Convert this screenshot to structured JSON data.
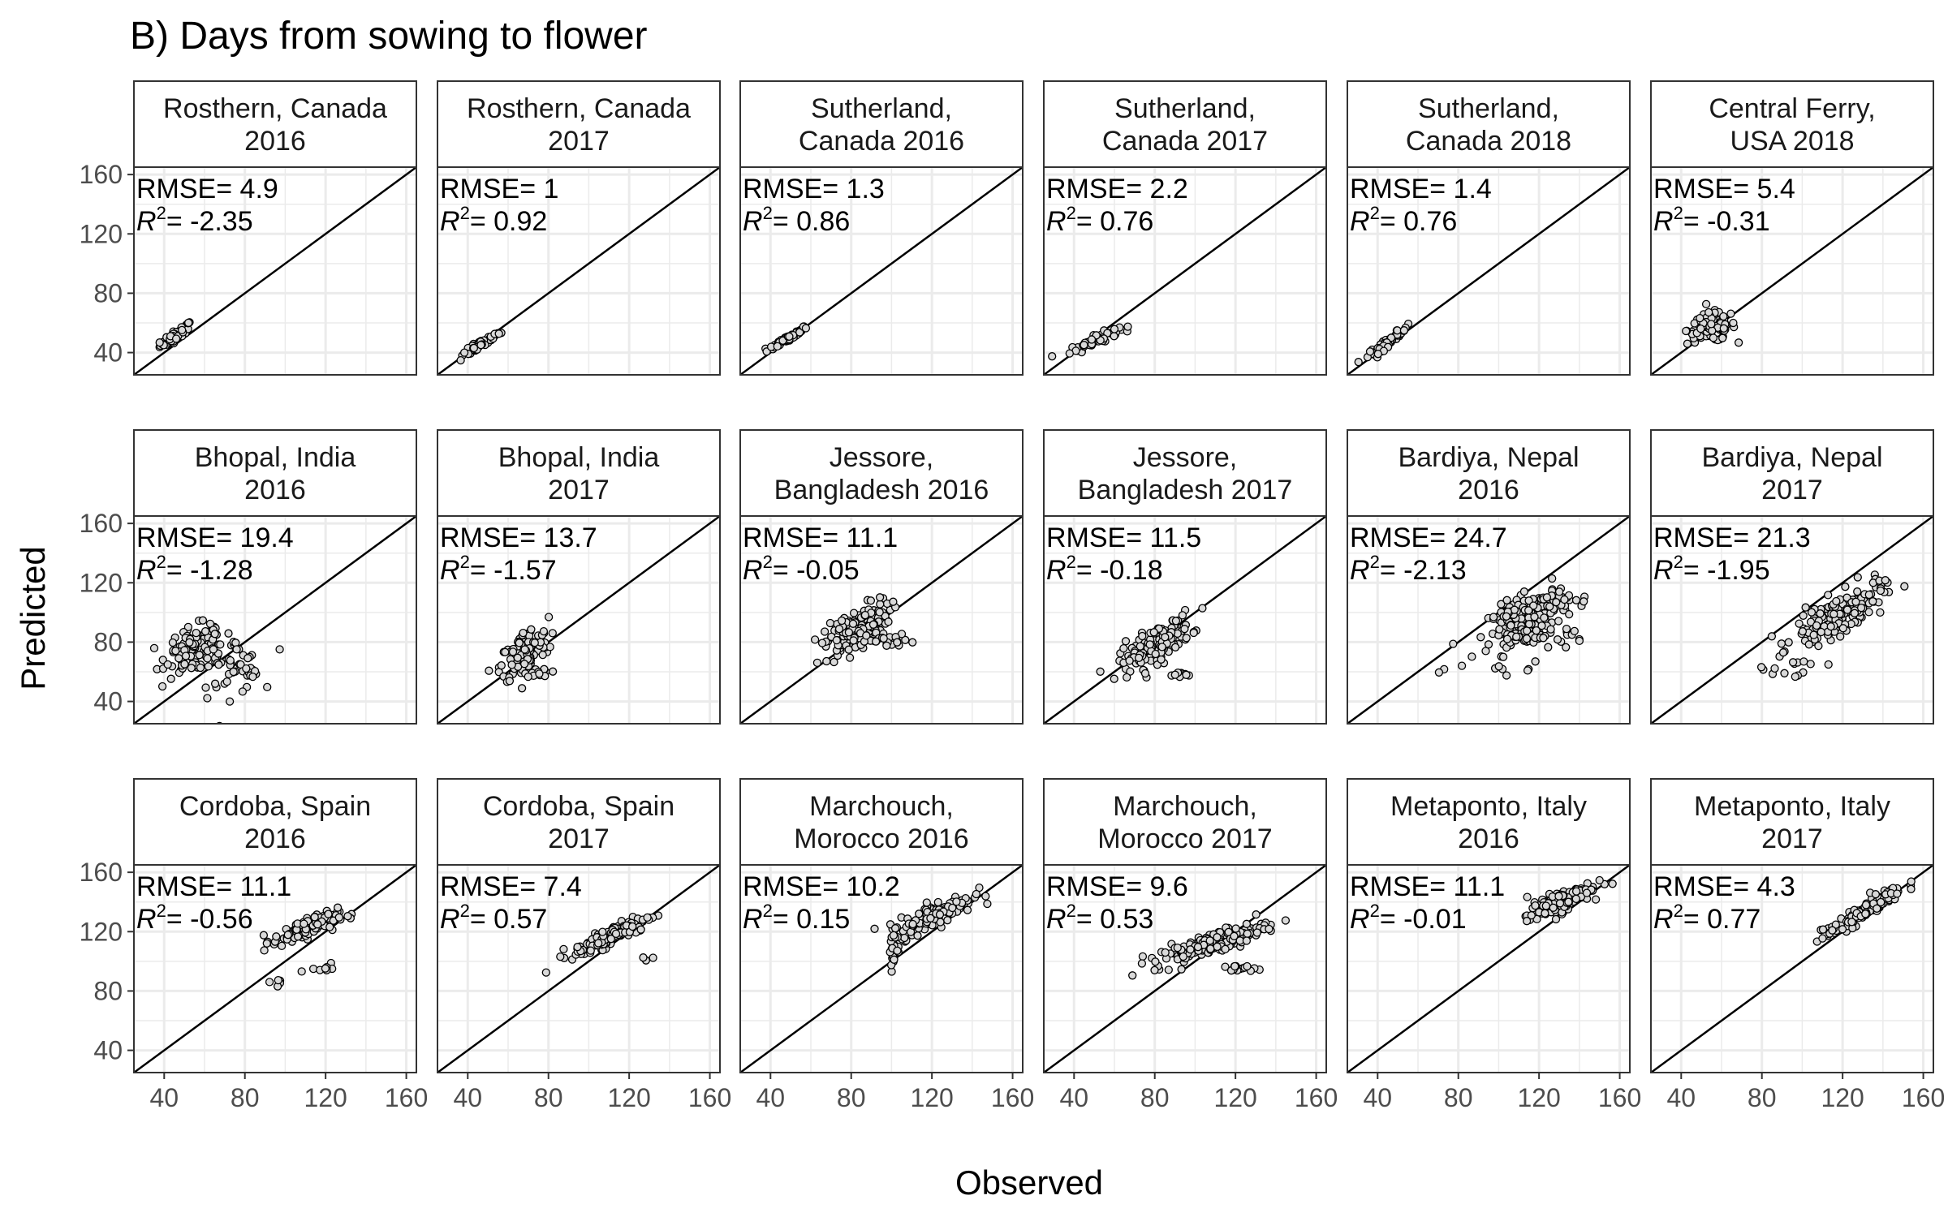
{
  "figure": {
    "title": "B) Days from sowing to flower",
    "xlabel": "Observed",
    "ylabel": "Predicted",
    "rmse_prefix": "RMSE= ",
    "r2_prefix": "R",
    "r2_sup": "2",
    "r2_suffix": "= ",
    "colors": {
      "point_fill": "#d9d9d9",
      "point_stroke": "#000000",
      "grid": "#ebebeb",
      "strip": "#ffffff",
      "line": "#000000"
    }
  },
  "chart_data": {
    "type": "scatter",
    "facet_layout": {
      "rows": 3,
      "cols": 6
    },
    "xlim": [
      25,
      165
    ],
    "ylim": [
      25,
      165
    ],
    "x_ticks": [
      40,
      80,
      120,
      160
    ],
    "y_ticks": [
      40,
      80,
      120,
      160
    ],
    "reference_line": "y = x",
    "grid": true,
    "panels": [
      {
        "strip": [
          "Rosthern, Canada",
          "2016"
        ],
        "rmse": "4.9",
        "r2": "-2.35",
        "clusters": [
          {
            "cx": 46,
            "cy": 52,
            "sx": 4,
            "sy": 4,
            "n": 60,
            "r": 0.9
          }
        ]
      },
      {
        "strip": [
          "Rosthern, Canada",
          "2017"
        ],
        "rmse": "1",
        "r2": "0.92",
        "clusters": [
          {
            "cx": 46,
            "cy": 45,
            "sx": 5,
            "sy": 4.5,
            "n": 55,
            "r": 0.95
          }
        ]
      },
      {
        "strip": [
          "Sutherland,",
          "Canada 2016"
        ],
        "rmse": "1.3",
        "r2": "0.86",
        "clusters": [
          {
            "cx": 49,
            "cy": 50,
            "sx": 5,
            "sy": 4,
            "n": 60,
            "r": 0.95
          }
        ]
      },
      {
        "strip": [
          "Sutherland,",
          "Canada 2017"
        ],
        "rmse": "2.2",
        "r2": "0.76",
        "clusters": [
          {
            "cx": 50,
            "cy": 48,
            "sx": 6,
            "sy": 4,
            "n": 60,
            "r": 0.9
          }
        ]
      },
      {
        "strip": [
          "Sutherland,",
          "Canada 2018"
        ],
        "rmse": "1.4",
        "r2": "0.76",
        "clusters": [
          {
            "cx": 45,
            "cy": 47,
            "sx": 5,
            "sy": 5,
            "n": 55,
            "r": 0.95
          }
        ]
      },
      {
        "strip": [
          "Central Ferry,",
          "USA 2018"
        ],
        "rmse": "5.4",
        "r2": "-0.31",
        "clusters": [
          {
            "cx": 55,
            "cy": 57,
            "sx": 6,
            "sy": 5,
            "n": 100,
            "r": 0.2
          }
        ]
      },
      {
        "strip": [
          "Bhopal, India",
          "2016"
        ],
        "rmse": "19.4",
        "r2": "-1.28",
        "clusters": [
          {
            "cx": 55,
            "cy": 75,
            "sx": 7,
            "sy": 8,
            "n": 110,
            "r": 0.3
          },
          {
            "cx": 72,
            "cy": 64,
            "sx": 8,
            "sy": 10,
            "n": 50,
            "r": 0.1
          },
          {
            "cx": 83,
            "cy": 60,
            "sx": 1.5,
            "sy": 1.5,
            "n": 12,
            "r": 0
          }
        ]
      },
      {
        "strip": [
          "Bhopal, India",
          "2017"
        ],
        "rmse": "13.7",
        "r2": "-1.57",
        "clusters": [
          {
            "cx": 68,
            "cy": 72,
            "sx": 6,
            "sy": 9,
            "n": 130,
            "r": 0.5
          },
          {
            "cx": 75,
            "cy": 60,
            "sx": 3,
            "sy": 2,
            "n": 15,
            "r": 0
          }
        ]
      },
      {
        "strip": [
          "Jessore,",
          "Bangladesh 2016"
        ],
        "rmse": "11.1",
        "r2": "-0.05",
        "clusters": [
          {
            "cx": 83,
            "cy": 88,
            "sx": 8,
            "sy": 9,
            "n": 160,
            "r": 0.6
          },
          {
            "cx": 100,
            "cy": 80,
            "sx": 6,
            "sy": 3,
            "n": 20,
            "r": 0
          }
        ]
      },
      {
        "strip": [
          "Jessore,",
          "Bangladesh 2017"
        ],
        "rmse": "11.5",
        "r2": "-0.18",
        "clusters": [
          {
            "cx": 80,
            "cy": 78,
            "sx": 9,
            "sy": 9,
            "n": 150,
            "r": 0.75
          },
          {
            "cx": 95,
            "cy": 58,
            "sx": 3,
            "sy": 1,
            "n": 12,
            "r": 0
          }
        ]
      },
      {
        "strip": [
          "Bardiya, Nepal",
          "2016"
        ],
        "rmse": "24.7",
        "r2": "-2.13",
        "clusters": [
          {
            "cx": 115,
            "cy": 98,
            "sx": 10,
            "sy": 9,
            "n": 180,
            "r": 0.6
          },
          {
            "cx": 120,
            "cy": 84,
            "sx": 12,
            "sy": 3,
            "n": 40,
            "r": 0
          },
          {
            "cx": 110,
            "cy": 62,
            "sx": 15,
            "sy": 4,
            "n": 10,
            "r": 0
          }
        ]
      },
      {
        "strip": [
          "Bardiya, Nepal",
          "2017"
        ],
        "rmse": "21.3",
        "r2": "-1.95",
        "clusters": [
          {
            "cx": 118,
            "cy": 98,
            "sx": 11,
            "sy": 10,
            "n": 170,
            "r": 0.75
          },
          {
            "cx": 95,
            "cy": 65,
            "sx": 12,
            "sy": 6,
            "n": 15,
            "r": 0.3
          }
        ]
      },
      {
        "strip": [
          "Cordoba, Spain",
          "2016"
        ],
        "rmse": "11.1",
        "r2": "-0.56",
        "clusters": [
          {
            "cx": 110,
            "cy": 122,
            "sx": 8,
            "sy": 5,
            "n": 130,
            "r": 0.75
          },
          {
            "cx": 118,
            "cy": 96,
            "sx": 6,
            "sy": 2,
            "n": 8,
            "r": 0
          },
          {
            "cx": 96,
            "cy": 85,
            "sx": 2,
            "sy": 3,
            "n": 5,
            "r": 0
          }
        ]
      },
      {
        "strip": [
          "Cordoba, Spain",
          "2017"
        ],
        "rmse": "7.4",
        "r2": "0.57",
        "clusters": [
          {
            "cx": 112,
            "cy": 118,
            "sx": 10,
            "sy": 7,
            "n": 140,
            "r": 0.9
          },
          {
            "cx": 130,
            "cy": 102,
            "sx": 1.5,
            "sy": 1,
            "n": 3,
            "r": 0
          }
        ]
      },
      {
        "strip": [
          "Marchouch,",
          "Morocco 2016"
        ],
        "rmse": "10.2",
        "r2": "0.15",
        "clusters": [
          {
            "cx": 122,
            "cy": 132,
            "sx": 9,
            "sy": 7,
            "n": 130,
            "r": 0.8
          },
          {
            "cx": 101,
            "cy": 112,
            "sx": 1.5,
            "sy": 7,
            "n": 25,
            "r": 0
          }
        ]
      },
      {
        "strip": [
          "Marchouch,",
          "Morocco 2017"
        ],
        "rmse": "9.6",
        "r2": "0.53",
        "clusters": [
          {
            "cx": 108,
            "cy": 112,
            "sx": 14,
            "sy": 7,
            "n": 170,
            "r": 0.85
          },
          {
            "cx": 122,
            "cy": 95,
            "sx": 4,
            "sy": 1,
            "n": 14,
            "r": 0
          }
        ]
      },
      {
        "strip": [
          "Metaponto, Italy",
          "2016"
        ],
        "rmse": "11.1",
        "r2": "-0.01",
        "clusters": [
          {
            "cx": 130,
            "cy": 140,
            "sx": 8,
            "sy": 6,
            "n": 140,
            "r": 0.8
          }
        ]
      },
      {
        "strip": [
          "Metaponto, Italy",
          "2017"
        ],
        "rmse": "4.3",
        "r2": "0.77",
        "clusters": [
          {
            "cx": 130,
            "cy": 133,
            "sx": 10,
            "sy": 9,
            "n": 140,
            "r": 0.95
          }
        ]
      }
    ]
  }
}
